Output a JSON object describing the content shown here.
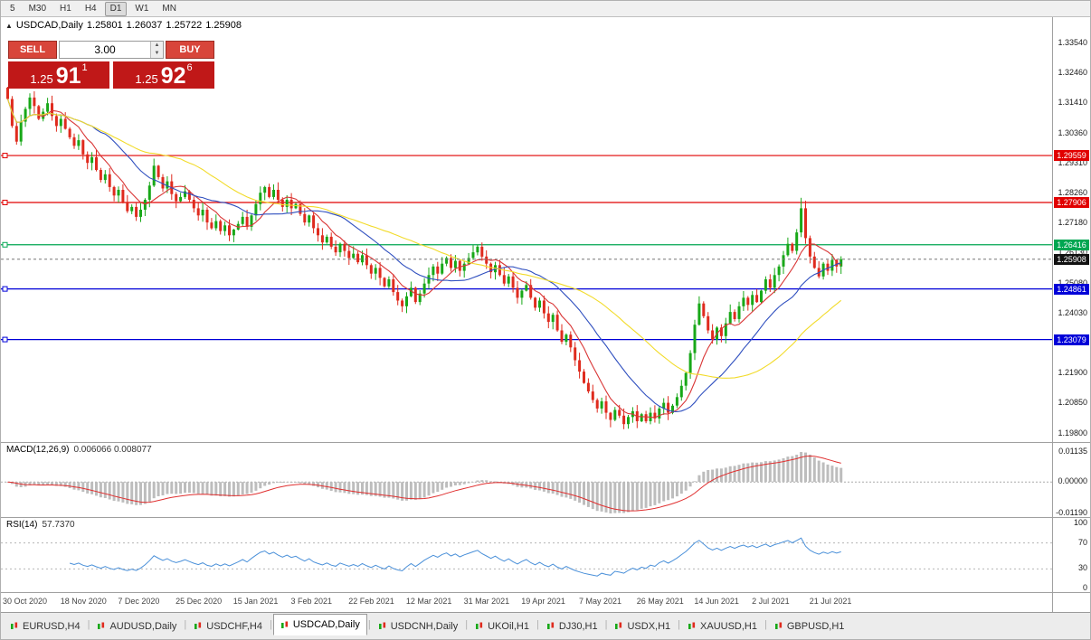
{
  "toolbar": {
    "timeframes": [
      "5",
      "M30",
      "H1",
      "H4",
      "D1",
      "W1",
      "MN"
    ],
    "active": "D1"
  },
  "window": {
    "title": "USDCAD,Daily",
    "ohlc": {
      "open": "1.25801",
      "high": "1.26037",
      "low": "1.25722",
      "close": "1.25908"
    }
  },
  "trade_panel": {
    "sell_label": "SELL",
    "buy_label": "BUY",
    "volume": "3.00",
    "sell_price": {
      "prefix": "1.25",
      "big": "91",
      "sup": "1"
    },
    "buy_price": {
      "prefix": "1.25",
      "big": "92",
      "sup": "6"
    }
  },
  "price_axis": {
    "labels": [
      "1.33540",
      "1.32460",
      "1.31410",
      "1.30360",
      "1.29310",
      "1.28260",
      "1.27180",
      "1.26130",
      "1.25080",
      "1.24030",
      "1.22980",
      "1.21900",
      "1.20850",
      "1.19800"
    ]
  },
  "hlines": [
    {
      "price": 1.29559,
      "label": "1.29559",
      "color": "#E10000",
      "name": "resistance-upper"
    },
    {
      "price": 1.27906,
      "label": "1.27906",
      "color": "#E10000",
      "name": "resistance-lower"
    },
    {
      "price": 1.26416,
      "label": "1.26416",
      "color": "#00A651",
      "name": "pivot-green"
    },
    {
      "price": 1.24861,
      "label": "1.24861",
      "color": "#0000D8",
      "name": "support-upper"
    },
    {
      "price": 1.23079,
      "label": "1.23079",
      "color": "#0000D8",
      "name": "support-lower"
    }
  ],
  "current_price": {
    "value": 1.25908,
    "label": "1.25908",
    "badge_color": "#111111"
  },
  "chart_data": {
    "type": "candlestick",
    "symbol": "USDCAD",
    "timeframe": "Daily",
    "y_range": [
      1.198,
      1.3354
    ],
    "up_color": "#18A818",
    "down_color": "#DF2B1E",
    "closes": [
      1.3155,
      1.306,
      1.3005,
      1.3075,
      1.312,
      1.316,
      1.313,
      1.3085,
      1.311,
      1.314,
      1.3095,
      1.306,
      1.3085,
      1.305,
      1.302,
      1.299,
      1.301,
      1.296,
      1.293,
      1.295,
      1.2905,
      1.287,
      1.289,
      1.2845,
      1.2815,
      1.2835,
      1.279,
      1.276,
      1.2775,
      1.274,
      1.2765,
      1.28,
      1.285,
      1.292,
      1.288,
      1.284,
      1.2865,
      1.282,
      1.2795,
      1.281,
      1.283,
      1.28,
      1.277,
      1.2745,
      1.2765,
      1.272,
      1.27,
      1.2725,
      1.269,
      1.271,
      1.2675,
      1.2695,
      1.2715,
      1.274,
      1.2705,
      1.2745,
      1.2785,
      1.2825,
      1.2845,
      1.281,
      1.2835,
      1.28,
      1.2775,
      1.28,
      1.277,
      1.2785,
      1.275,
      1.272,
      1.2745,
      1.27,
      1.2675,
      1.265,
      1.267,
      1.2635,
      1.2615,
      1.2645,
      1.262,
      1.2595,
      1.261,
      1.258,
      1.2605,
      1.257,
      1.254,
      1.256,
      1.2525,
      1.2495,
      1.252,
      1.2475,
      1.2445,
      1.2425,
      1.246,
      1.249,
      1.244,
      1.247,
      1.2505,
      1.2535,
      1.2565,
      1.254,
      1.2575,
      1.2595,
      1.256,
      1.2585,
      1.255,
      1.2575,
      1.2595,
      1.2615,
      1.2635,
      1.26,
      1.2575,
      1.2545,
      1.257,
      1.2535,
      1.2505,
      1.253,
      1.249,
      1.2455,
      1.248,
      1.25,
      1.2455,
      1.242,
      1.2445,
      1.24,
      1.237,
      1.2395,
      1.234,
      1.23,
      1.2325,
      1.228,
      1.2235,
      1.2195,
      1.2155,
      1.2125,
      1.2095,
      1.2065,
      1.209,
      1.205,
      1.2025,
      1.206,
      1.204,
      1.201,
      1.2035,
      1.2055,
      1.202,
      1.2045,
      1.202,
      1.205,
      1.203,
      1.2065,
      1.2085,
      1.205,
      1.2075,
      1.2105,
      1.2145,
      1.219,
      1.226,
      1.236,
      1.2435,
      1.239,
      1.234,
      1.2308,
      1.235,
      1.232,
      1.2365,
      1.2405,
      1.238,
      1.2425,
      1.2455,
      1.243,
      1.2465,
      1.244,
      1.248,
      1.252,
      1.249,
      1.2535,
      1.2565,
      1.2605,
      1.2645,
      1.262,
      1.2685,
      1.277,
      1.2665,
      1.26,
      1.256,
      1.253,
      1.2575,
      1.255,
      1.2588,
      1.2565,
      1.25908
    ],
    "spikes": [
      {
        "i": 33,
        "high": 1.2945
      },
      {
        "i": 89,
        "low": 1.2405
      },
      {
        "i": 139,
        "low": 1.1992
      },
      {
        "i": 179,
        "high": 1.2807
      },
      {
        "i": 180,
        "high": 1.2788
      }
    ],
    "overlays": [
      {
        "name": "ma-fast",
        "period": 8,
        "color": "#D93636"
      },
      {
        "name": "ma-mid",
        "period": 20,
        "color": "#2F4FBF"
      },
      {
        "name": "ma-slow",
        "period": 40,
        "color": "#F2DB2A"
      }
    ],
    "date_labels": [
      "30 Oct 2020",
      "18 Nov 2020",
      "7 Dec 2020",
      "25 Dec 2020",
      "15 Jan 2021",
      "3 Feb 2021",
      "22 Feb 2021",
      "12 Mar 2021",
      "31 Mar 2021",
      "19 Apr 2021",
      "7 May 2021",
      "26 May 2021",
      "14 Jun 2021",
      "2 Jul 2021",
      "21 Jul 2021"
    ],
    "bars_per_label": 13
  },
  "macd": {
    "name_label": "MACD(12,26,9)",
    "values_label": "0.006066 0.008077",
    "axis_labels": [
      "0.01135",
      "0.00000",
      "-0.01190"
    ],
    "range": [
      -0.0119,
      0.01135
    ],
    "hist_color": "#BDBDBD",
    "signal_color": "#E03030"
  },
  "rsi": {
    "name_label": "RSI(14)",
    "value_label": "57.7370",
    "axis_labels": [
      "100",
      "70",
      "30",
      "0"
    ],
    "levels": [
      70,
      30
    ],
    "line_color": "#4A90D9",
    "level_color": "#B5B5B5",
    "period": 14
  },
  "tabs": {
    "items": [
      {
        "label": "EURUSD,H4"
      },
      {
        "label": "AUDUSD,Daily"
      },
      {
        "label": "USDCHF,H4"
      },
      {
        "label": "USDCAD,Daily",
        "active": true
      },
      {
        "label": "USDCNH,Daily"
      },
      {
        "label": "UKOil,H1"
      },
      {
        "label": "DJ30,H1"
      },
      {
        "label": "USDX,H1"
      },
      {
        "label": "XAUUSD,H1"
      },
      {
        "label": "GBPUSD,H1"
      }
    ]
  }
}
